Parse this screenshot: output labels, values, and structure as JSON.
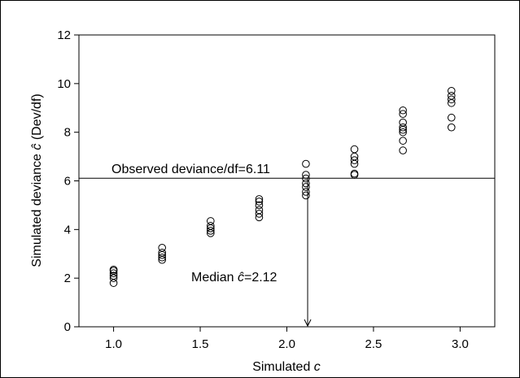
{
  "chart_data": {
    "type": "scatter",
    "title": "",
    "xlabel": "Simulated c",
    "xlabel_parts": {
      "text": "Simulated ",
      "var": "c"
    },
    "ylabel": "Simulated deviance ĉ (Dev/df)",
    "ylabel_parts": {
      "pre": "Simulated deviance ",
      "var": "ĉ",
      "post": " (Dev/df)"
    },
    "xlim": [
      0.8,
      3.2
    ],
    "ylim": [
      0,
      12
    ],
    "xticks": [
      "1.0",
      "1.5",
      "2.0",
      "2.5",
      "3.0"
    ],
    "yticks": [
      "0",
      "2",
      "4",
      "6",
      "8",
      "10",
      "12"
    ],
    "grid": false,
    "series": [
      {
        "marker": "open-circle",
        "points": [
          [
            1.0,
            1.8
          ],
          [
            1.0,
            2.0
          ],
          [
            1.0,
            2.1
          ],
          [
            1.0,
            2.2
          ],
          [
            1.0,
            2.3
          ],
          [
            1.0,
            2.35
          ],
          [
            1.28,
            2.75
          ],
          [
            1.28,
            2.85
          ],
          [
            1.28,
            2.95
          ],
          [
            1.28,
            3.05
          ],
          [
            1.28,
            3.25
          ],
          [
            1.56,
            3.85
          ],
          [
            1.56,
            3.95
          ],
          [
            1.56,
            4.05
          ],
          [
            1.56,
            4.15
          ],
          [
            1.56,
            4.35
          ],
          [
            1.84,
            4.5
          ],
          [
            1.84,
            4.65
          ],
          [
            1.84,
            4.8
          ],
          [
            1.84,
            5.0
          ],
          [
            1.84,
            5.15
          ],
          [
            1.84,
            5.25
          ],
          [
            2.11,
            5.4
          ],
          [
            2.11,
            5.55
          ],
          [
            2.11,
            5.75
          ],
          [
            2.11,
            5.9
          ],
          [
            2.11,
            6.1
          ],
          [
            2.11,
            6.25
          ],
          [
            2.11,
            6.7
          ],
          [
            2.39,
            6.25
          ],
          [
            2.39,
            6.3
          ],
          [
            2.39,
            6.7
          ],
          [
            2.39,
            6.85
          ],
          [
            2.39,
            7.0
          ],
          [
            2.39,
            7.3
          ],
          [
            2.67,
            7.25
          ],
          [
            2.67,
            7.65
          ],
          [
            2.67,
            8.0
          ],
          [
            2.67,
            8.1
          ],
          [
            2.67,
            8.2
          ],
          [
            2.67,
            8.4
          ],
          [
            2.67,
            8.75
          ],
          [
            2.67,
            8.9
          ],
          [
            2.95,
            8.2
          ],
          [
            2.95,
            8.6
          ],
          [
            2.95,
            9.2
          ],
          [
            2.95,
            9.35
          ],
          [
            2.95,
            9.5
          ],
          [
            2.95,
            9.7
          ]
        ]
      }
    ],
    "reference_line": {
      "y": 6.11,
      "label": "Observed deviance/df=6.11"
    },
    "median_marker": {
      "x": 2.12,
      "label_pre": "Median ",
      "label_var": "ĉ",
      "label_post": "=2.12"
    }
  }
}
